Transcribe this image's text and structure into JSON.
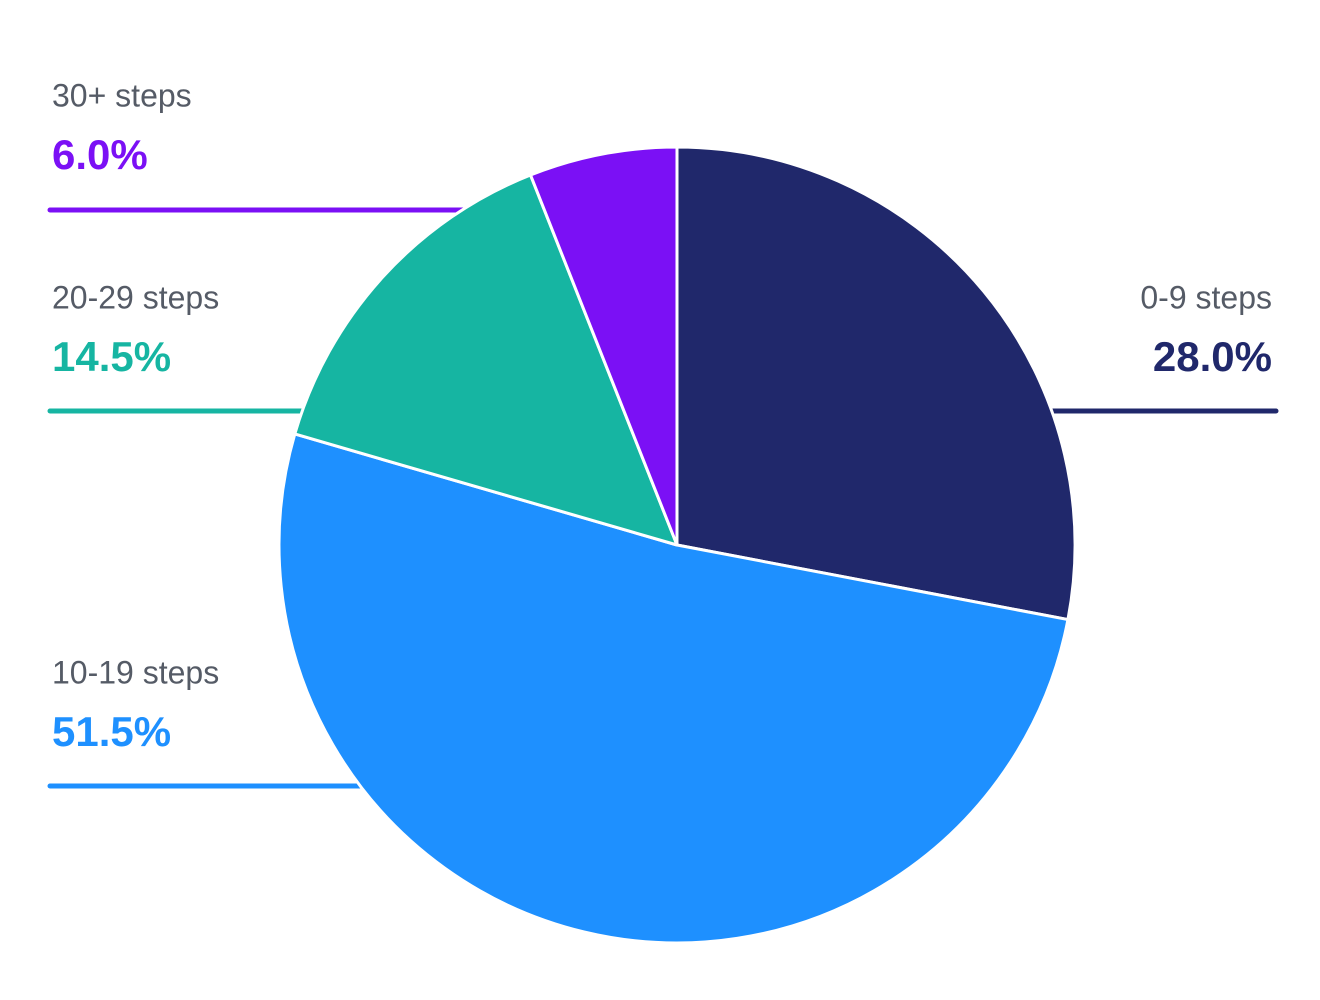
{
  "chart_data": {
    "type": "pie",
    "title": "",
    "start_angle_deg": 0,
    "direction": "clockwise",
    "slices": [
      {
        "label": "0-9 steps",
        "value": 28.0,
        "value_label": "28.0%",
        "color": "#20286b"
      },
      {
        "label": "10-19 steps",
        "value": 51.5,
        "value_label": "51.5%",
        "color": "#1e90ff"
      },
      {
        "label": "20-29 steps",
        "value": 14.5,
        "value_label": "14.5%",
        "color": "#16b5a2"
      },
      {
        "label": "30+ steps",
        "value": 6.0,
        "value_label": "6.0%",
        "color": "#7b10f5"
      }
    ],
    "label_placement": {
      "0-9 steps": "right",
      "10-19 steps": "left",
      "20-29 steps": "left",
      "30+ steps": "left"
    },
    "label_text_color": "#555b66",
    "slice_border_color": "#ffffff"
  }
}
